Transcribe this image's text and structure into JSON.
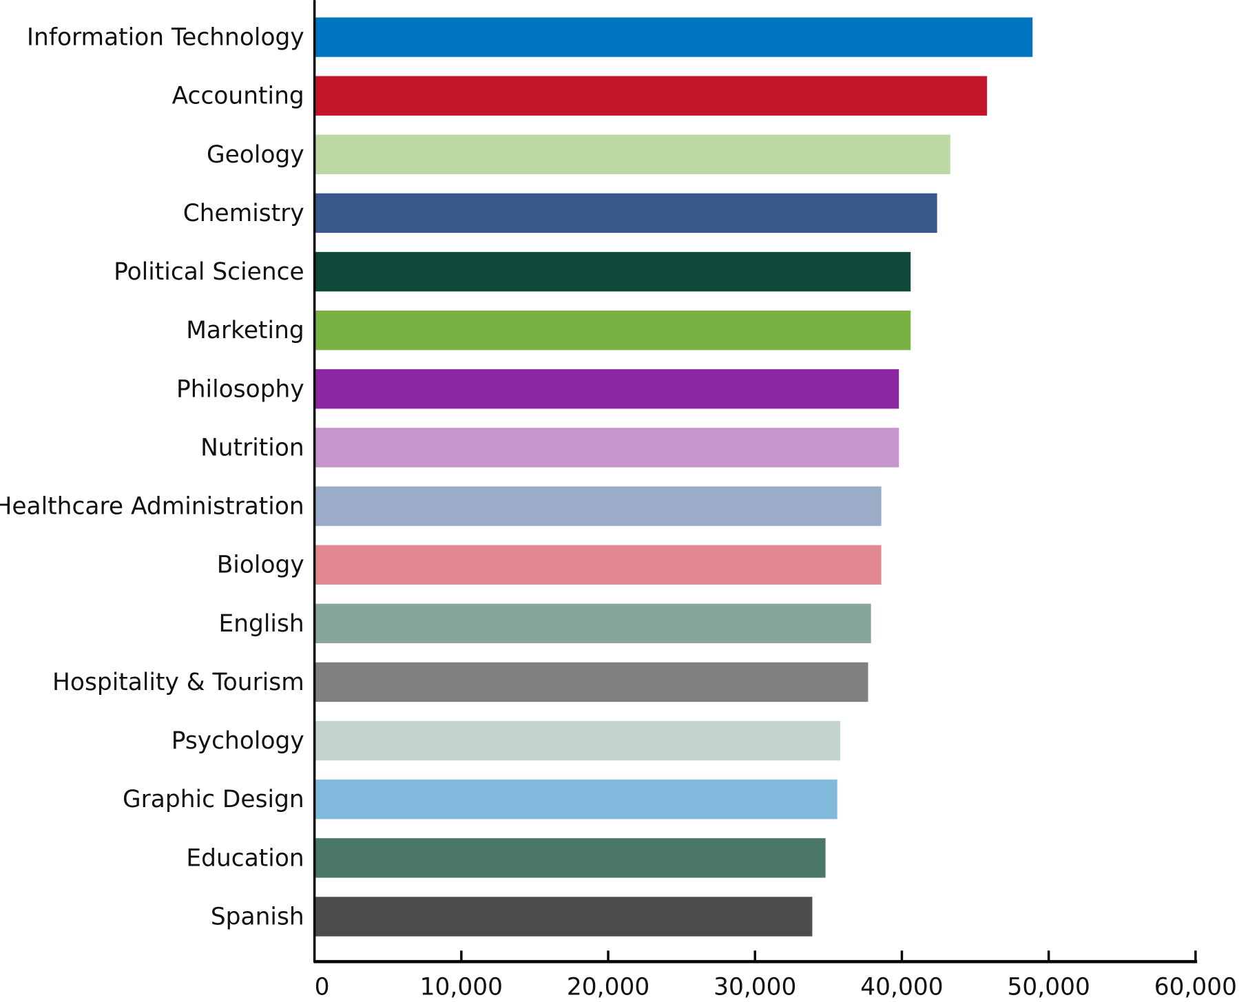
{
  "chart_data": {
    "type": "bar",
    "orientation": "horizontal",
    "title": "",
    "xlabel": "",
    "ylabel": "",
    "xlim": [
      0,
      60000
    ],
    "grid": false,
    "legend": "none",
    "x_ticks": [
      "0",
      "10,000",
      "20,000",
      "30,000",
      "40,000",
      "50,000",
      "60,000"
    ],
    "x_tick_values": [
      0,
      10000,
      20000,
      30000,
      40000,
      50000,
      60000
    ],
    "categories": [
      "Information Technology",
      "Accounting",
      "Geology",
      "Chemistry",
      "Political Science",
      "Marketing",
      "Philosophy",
      "Nutrition",
      "Healthcare Administration",
      "Biology",
      "English",
      "Hospitality & Tourism",
      "Psychology",
      "Graphic Design",
      "Education",
      "Spanish"
    ],
    "values": [
      48900,
      45800,
      43300,
      42400,
      40600,
      40600,
      39800,
      39800,
      38600,
      38600,
      37900,
      37700,
      35800,
      35600,
      34800,
      33900
    ],
    "colors": [
      "#0075bf",
      "#c41528",
      "#bcd9a3",
      "#39598c",
      "#11493b",
      "#7ab143",
      "#8e27a2",
      "#c794ce",
      "#9bacc8",
      "#e0878f",
      "#88a59d",
      "#808080",
      "#c4d3cf",
      "#81b9dd",
      "#4b776a",
      "#4d4d4d"
    ]
  }
}
